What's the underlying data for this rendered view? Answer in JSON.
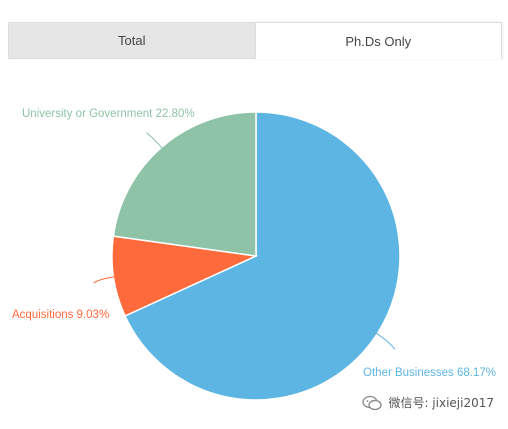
{
  "tabs": [
    {
      "label": "Total",
      "active": false
    },
    {
      "label": "Ph.Ds Only",
      "active": true
    }
  ],
  "watermark": {
    "text": "微信号: jixieji2017",
    "icon": "wechat-icon"
  },
  "chart_data": {
    "type": "pie",
    "title": "",
    "slices": [
      {
        "label": "Other Businesses",
        "value": 68.17,
        "display": "Other Businesses 68.17%",
        "color": "#5db5e3"
      },
      {
        "label": "Acquisitions",
        "value": 9.03,
        "display": "Acquisitions 9.03%",
        "color": "#ff6a3d"
      },
      {
        "label": "University or Government",
        "value": 22.8,
        "display": "University or Government 22.80%",
        "color": "#8ec3a7"
      }
    ],
    "start": "12 o'clock",
    "direction": "clockwise",
    "legend": "none (labels beside slices)"
  }
}
